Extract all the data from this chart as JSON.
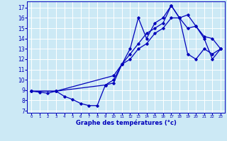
{
  "xlabel": "Graphe des températures (°c)",
  "x_ticks": [
    0,
    1,
    2,
    3,
    4,
    5,
    6,
    7,
    8,
    9,
    10,
    11,
    12,
    13,
    14,
    15,
    16,
    17,
    18,
    19,
    20,
    21,
    22,
    23
  ],
  "y_ticks": [
    7,
    8,
    9,
    10,
    11,
    12,
    13,
    14,
    15,
    16,
    17
  ],
  "ylim": [
    6.8,
    17.6
  ],
  "xlim": [
    -0.5,
    23.5
  ],
  "bg_color": "#cce9f5",
  "grid_color": "#ffffff",
  "line_color": "#0000bb",
  "line1_x": [
    0,
    1,
    2,
    3,
    4,
    5,
    6,
    7,
    8,
    9,
    10,
    11,
    12,
    13,
    14,
    15,
    16,
    17,
    18,
    19,
    20,
    21,
    22,
    23
  ],
  "line1_y": [
    8.9,
    8.8,
    8.7,
    8.9,
    8.4,
    8.1,
    7.7,
    7.5,
    7.5,
    9.5,
    9.7,
    11.5,
    13.0,
    16.0,
    14.0,
    15.5,
    16.0,
    17.2,
    16.0,
    16.3,
    15.2,
    14.2,
    14.0,
    13.0
  ],
  "line2_x": [
    0,
    3,
    9,
    10,
    11,
    12,
    13,
    14,
    15,
    16,
    17,
    18,
    19,
    20,
    21,
    22,
    23
  ],
  "line2_y": [
    8.9,
    8.9,
    9.5,
    10.0,
    11.5,
    12.5,
    13.5,
    14.5,
    15.0,
    15.5,
    17.2,
    16.0,
    15.0,
    15.2,
    14.0,
    12.0,
    13.0
  ],
  "line3_x": [
    0,
    3,
    10,
    11,
    12,
    13,
    14,
    15,
    16,
    17,
    18,
    19,
    20,
    21,
    22,
    23
  ],
  "line3_y": [
    8.9,
    8.9,
    10.4,
    11.5,
    12.0,
    13.0,
    13.5,
    14.5,
    15.0,
    16.0,
    16.0,
    12.5,
    12.0,
    13.0,
    12.5,
    13.0
  ]
}
